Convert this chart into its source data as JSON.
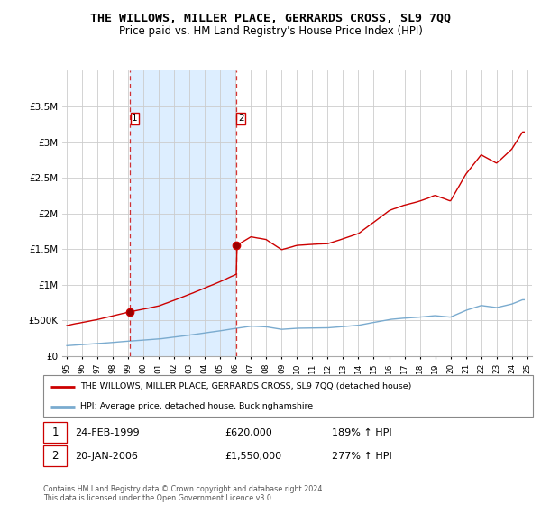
{
  "title": "THE WILLOWS, MILLER PLACE, GERRARDS CROSS, SL9 7QQ",
  "subtitle": "Price paid vs. HM Land Registry's House Price Index (HPI)",
  "legend_label_red": "THE WILLOWS, MILLER PLACE, GERRARDS CROSS, SL9 7QQ (detached house)",
  "legend_label_blue": "HPI: Average price, detached house, Buckinghamshire",
  "sale1_date_label": "24-FEB-1999",
  "sale1_price_label": "£620,000",
  "sale1_pct_label": "189% ↑ HPI",
  "sale1_year": 1999.13,
  "sale1_price": 620000,
  "sale2_date_label": "20-JAN-2006",
  "sale2_price_label": "£1,550,000",
  "sale2_pct_label": "277% ↑ HPI",
  "sale2_year": 2006.05,
  "sale2_price": 1550000,
  "footer": "Contains HM Land Registry data © Crown copyright and database right 2024.\nThis data is licensed under the Open Government Licence v3.0.",
  "red_color": "#cc0000",
  "blue_color": "#7aabcf",
  "shade_color": "#ddeeff",
  "background_color": "#ffffff",
  "grid_color": "#cccccc",
  "ylim": [
    0,
    4000000
  ],
  "yticks": [
    0,
    500000,
    1000000,
    1500000,
    2000000,
    2500000,
    3000000,
    3500000
  ],
  "ytick_labels": [
    "£0",
    "£500K",
    "£1M",
    "£1.5M",
    "£2M",
    "£2.5M",
    "£3M",
    "£3.5M"
  ],
  "xlim_start": 1994.7,
  "xlim_end": 2025.3,
  "xticks": [
    1995,
    1996,
    1997,
    1998,
    1999,
    2000,
    2001,
    2002,
    2003,
    2004,
    2005,
    2006,
    2007,
    2008,
    2009,
    2010,
    2011,
    2012,
    2013,
    2014,
    2015,
    2016,
    2017,
    2018,
    2019,
    2020,
    2021,
    2022,
    2023,
    2024,
    2025
  ],
  "xtick_labels": [
    "95",
    "96",
    "97",
    "98",
    "99",
    "00",
    "01",
    "02",
    "03",
    "04",
    "05",
    "06",
    "07",
    "08",
    "09",
    "10",
    "11",
    "12",
    "13",
    "14",
    "15",
    "16",
    "17",
    "18",
    "19",
    "20",
    "21",
    "22",
    "23",
    "24",
    "25"
  ]
}
